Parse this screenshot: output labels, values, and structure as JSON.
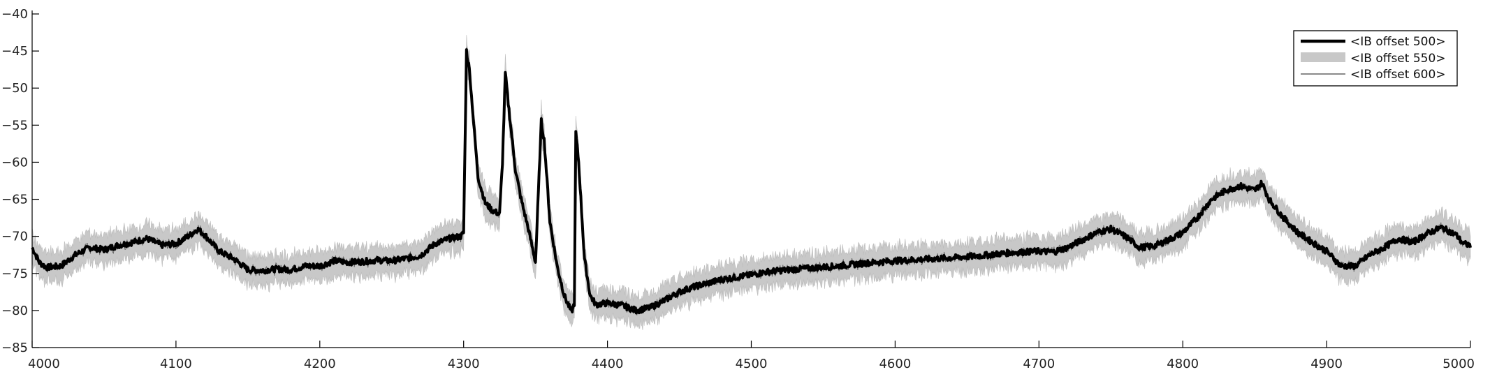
{
  "chart_data": {
    "type": "line",
    "title": "",
    "xlabel": "",
    "ylabel": "",
    "xlim": [
      4000,
      5000
    ],
    "ylim": [
      -85,
      -40
    ],
    "xticks": [
      4000,
      4100,
      4200,
      4300,
      4400,
      4500,
      4600,
      4700,
      4800,
      4900,
      5000
    ],
    "yticks": [
      -85,
      -80,
      -75,
      -70,
      -65,
      -60,
      -55,
      -50,
      -45,
      -40
    ],
    "grid": false,
    "legend_position": "top-right",
    "series": [
      {
        "name": "<IB offset 500>",
        "style": "thick-black",
        "color": "#000000",
        "points": [
          [
            4000,
            -71.5
          ],
          [
            4005,
            -73.5
          ],
          [
            4010,
            -74.2
          ],
          [
            4020,
            -74.0
          ],
          [
            4030,
            -72.5
          ],
          [
            4040,
            -71.5
          ],
          [
            4050,
            -71.8
          ],
          [
            4060,
            -71.2
          ],
          [
            4070,
            -70.8
          ],
          [
            4080,
            -70.3
          ],
          [
            4090,
            -71.2
          ],
          [
            4100,
            -71.0
          ],
          [
            4110,
            -69.8
          ],
          [
            4115,
            -69.0
          ],
          [
            4120,
            -69.8
          ],
          [
            4130,
            -72.0
          ],
          [
            4140,
            -73.0
          ],
          [
            4150,
            -74.5
          ],
          [
            4160,
            -74.6
          ],
          [
            4170,
            -74.4
          ],
          [
            4180,
            -74.5
          ],
          [
            4190,
            -74.0
          ],
          [
            4200,
            -74.0
          ],
          [
            4210,
            -73.3
          ],
          [
            4220,
            -73.5
          ],
          [
            4230,
            -73.4
          ],
          [
            4240,
            -73.2
          ],
          [
            4250,
            -73.3
          ],
          [
            4260,
            -73.0
          ],
          [
            4270,
            -72.6
          ],
          [
            4280,
            -71.0
          ],
          [
            4290,
            -70.3
          ],
          [
            4298,
            -70.0
          ],
          [
            4300,
            -69.5
          ],
          [
            4302,
            -45.0
          ],
          [
            4304,
            -47.5
          ],
          [
            4310,
            -62.0
          ],
          [
            4315,
            -65.5
          ],
          [
            4320,
            -66.5
          ],
          [
            4325,
            -67.0
          ],
          [
            4327,
            -60.0
          ],
          [
            4329,
            -48.0
          ],
          [
            4331,
            -52.0
          ],
          [
            4336,
            -61.0
          ],
          [
            4340,
            -65.0
          ],
          [
            4345,
            -69.0
          ],
          [
            4350,
            -73.5
          ],
          [
            4352,
            -64.0
          ],
          [
            4354,
            -54.5
          ],
          [
            4356,
            -57.0
          ],
          [
            4360,
            -68.0
          ],
          [
            4365,
            -74.0
          ],
          [
            4370,
            -78.0
          ],
          [
            4375,
            -80.2
          ],
          [
            4377,
            -79.0
          ],
          [
            4378,
            -56.0
          ],
          [
            4380,
            -60.0
          ],
          [
            4384,
            -73.0
          ],
          [
            4388,
            -78.0
          ],
          [
            4392,
            -79.2
          ],
          [
            4400,
            -79.0
          ],
          [
            4410,
            -79.3
          ],
          [
            4420,
            -80.0
          ],
          [
            4430,
            -79.6
          ],
          [
            4440,
            -78.6
          ],
          [
            4450,
            -77.5
          ],
          [
            4460,
            -76.8
          ],
          [
            4470,
            -76.3
          ],
          [
            4480,
            -75.8
          ],
          [
            4490,
            -75.5
          ],
          [
            4500,
            -75.2
          ],
          [
            4510,
            -74.8
          ],
          [
            4520,
            -74.6
          ],
          [
            4540,
            -74.3
          ],
          [
            4560,
            -74.0
          ],
          [
            4580,
            -73.6
          ],
          [
            4600,
            -73.3
          ],
          [
            4620,
            -73.1
          ],
          [
            4640,
            -72.9
          ],
          [
            4660,
            -72.6
          ],
          [
            4680,
            -72.2
          ],
          [
            4700,
            -72.0
          ],
          [
            4710,
            -72.1
          ],
          [
            4720,
            -71.5
          ],
          [
            4730,
            -70.5
          ],
          [
            4740,
            -69.5
          ],
          [
            4750,
            -69.0
          ],
          [
            4760,
            -70.0
          ],
          [
            4770,
            -71.5
          ],
          [
            4780,
            -71.3
          ],
          [
            4790,
            -70.5
          ],
          [
            4800,
            -69.5
          ],
          [
            4810,
            -67.5
          ],
          [
            4820,
            -65.0
          ],
          [
            4830,
            -63.8
          ],
          [
            4840,
            -63.2
          ],
          [
            4850,
            -63.8
          ],
          [
            4855,
            -62.8
          ],
          [
            4860,
            -65.0
          ],
          [
            4870,
            -67.5
          ],
          [
            4880,
            -69.5
          ],
          [
            4890,
            -70.8
          ],
          [
            4900,
            -72.0
          ],
          [
            4910,
            -74.0
          ],
          [
            4920,
            -74.0
          ],
          [
            4930,
            -72.5
          ],
          [
            4940,
            -71.5
          ],
          [
            4950,
            -70.3
          ],
          [
            4960,
            -70.8
          ],
          [
            4970,
            -69.6
          ],
          [
            4980,
            -68.8
          ],
          [
            4990,
            -69.8
          ],
          [
            4995,
            -71.0
          ],
          [
            5000,
            -71.2
          ]
        ]
      },
      {
        "name": "<IB offset 550>",
        "style": "gray-band",
        "color": "#c8c8c8",
        "half_width": 2.0
      },
      {
        "name": "<IB offset 600>",
        "style": "thin-dark",
        "color": "#555555"
      }
    ]
  }
}
